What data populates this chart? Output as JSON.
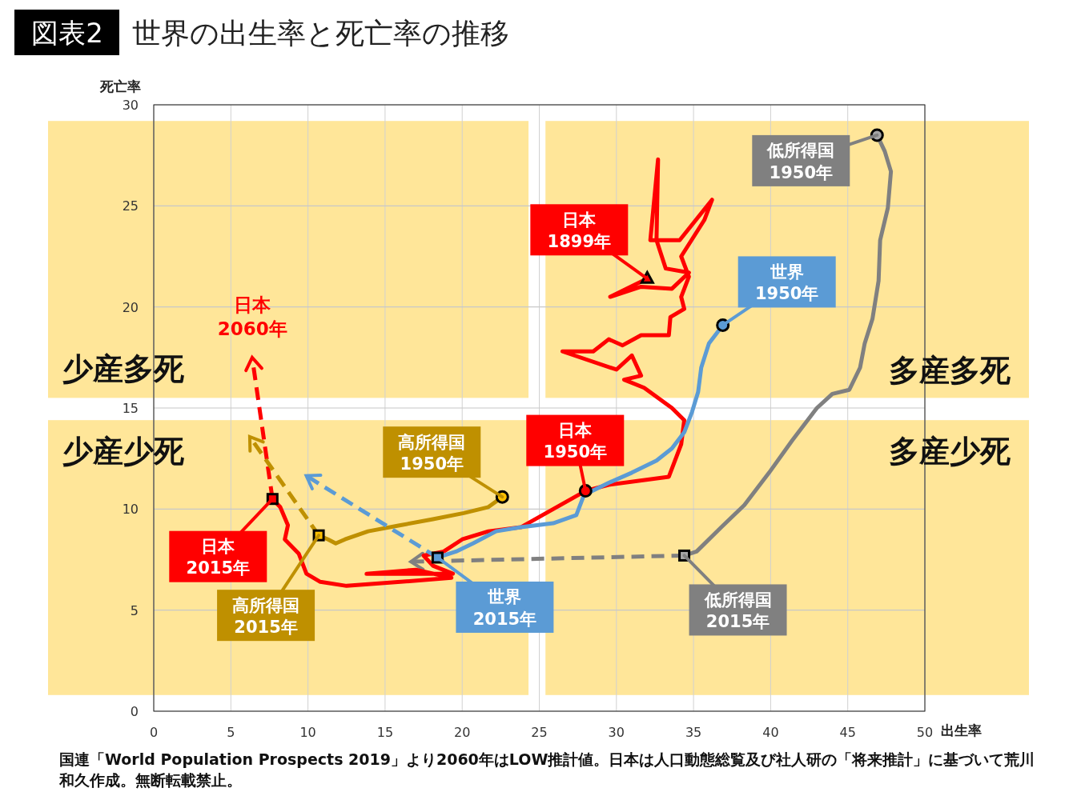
{
  "chart_data": {
    "type": "line",
    "title": "図表2",
    "subtitle": "世界の出生率と死亡率の推移",
    "xlabel": "出生率",
    "ylabel": "死亡率",
    "xlim": [
      0,
      50
    ],
    "ylim": [
      0,
      30
    ],
    "xticks": [
      0,
      5,
      10,
      15,
      20,
      25,
      30,
      35,
      40,
      45,
      50
    ],
    "yticks": [
      0,
      5,
      10,
      15,
      20,
      25,
      30
    ],
    "grid": true,
    "bands": [
      {
        "axis": "y",
        "from": 15.5,
        "to": 29.2,
        "color": "#ffe699"
      },
      {
        "axis": "y",
        "from": 0.8,
        "to": 14.4,
        "color": "#ffe699"
      },
      {
        "axis": "x",
        "from": 24.3,
        "to": 25.4,
        "color": "#ffffff"
      }
    ],
    "series": [
      {
        "type": "line",
        "color": "#808080",
        "line_style": "solid",
        "x": [
          46.9,
          47.4,
          47.8,
          47.6,
          47.1,
          47.0,
          46.6,
          46.1,
          45.8,
          45.1,
          44.0,
          43.0,
          41.4,
          39.9,
          38.3,
          36.8,
          35.2,
          34.4
        ],
        "values": [
          28.5,
          27.7,
          26.7,
          24.9,
          23.3,
          21.3,
          19.4,
          18.2,
          17.0,
          15.9,
          15.7,
          15.0,
          13.4,
          11.8,
          10.2,
          9.1,
          7.9,
          7.7
        ]
      },
      {
        "type": "line",
        "color": "#808080",
        "line_style": "dashed",
        "x": [
          34.4,
          16.8
        ],
        "values": [
          7.7,
          7.4
        ]
      },
      {
        "type": "line",
        "color": "#ff0000",
        "line_style": "solid",
        "x": [
          32.0,
          29.6,
          31.6,
          33.6,
          34.7,
          33.2,
          32.6,
          32.7,
          32.2,
          34.1,
          36.2,
          35.7,
          34.2,
          34.7,
          34.2,
          34.4,
          33.5,
          33.4,
          31.6,
          30.4,
          29.5,
          28.5,
          26.5,
          30.0,
          31.0,
          31.6,
          30.5,
          31.8,
          33.6,
          34.4,
          34.2,
          33.4,
          29.5,
          28.0,
          25.9,
          23.8,
          21.7,
          20.0,
          18.8,
          17.5,
          18.1,
          19.4,
          13.8,
          17.0,
          19.3,
          16.0,
          12.5,
          10.8,
          9.9,
          9.4,
          8.5,
          8.7,
          8.2,
          7.7
        ],
        "values": [
          21.4,
          20.5,
          21.0,
          20.9,
          21.7,
          21.9,
          23.3,
          27.3,
          23.3,
          23.3,
          25.3,
          24.3,
          22.5,
          21.5,
          20.5,
          19.9,
          19.5,
          18.6,
          18.6,
          18.1,
          18.4,
          17.8,
          17.8,
          16.9,
          17.6,
          16.6,
          16.4,
          16.0,
          15.0,
          14.4,
          13.2,
          11.6,
          11.2,
          10.9,
          10.0,
          9.1,
          8.9,
          8.5,
          7.9,
          7.7,
          7.2,
          6.8,
          6.8,
          7.0,
          6.6,
          6.4,
          6.2,
          6.4,
          6.8,
          7.8,
          8.5,
          9.2,
          10.1,
          10.5
        ]
      },
      {
        "type": "line",
        "color": "#ff0000",
        "line_style": "dashed",
        "x": [
          7.7,
          6.4
        ],
        "values": [
          10.5,
          17.4
        ]
      },
      {
        "type": "line",
        "color": "#bf9000",
        "line_style": "solid",
        "x": [
          22.6,
          21.7,
          20.1,
          18.1,
          16.0,
          13.9,
          12.4,
          11.8,
          11.3,
          10.7
        ],
        "values": [
          10.6,
          10.1,
          9.8,
          9.5,
          9.2,
          8.9,
          8.5,
          8.3,
          8.5,
          8.7
        ]
      },
      {
        "type": "line",
        "color": "#bf9000",
        "line_style": "dashed",
        "x": [
          10.7,
          6.3
        ],
        "values": [
          8.7,
          13.5
        ]
      },
      {
        "type": "line",
        "color": "#5b9bd5",
        "line_style": "solid",
        "x": [
          36.9,
          36.0,
          35.5,
          35.3,
          34.9,
          34.4,
          33.6,
          32.6,
          31.0,
          29.5,
          27.9,
          27.4,
          25.9,
          23.8,
          22.2,
          20.7,
          19.6,
          18.4
        ],
        "values": [
          19.1,
          18.2,
          17.0,
          15.8,
          14.8,
          13.8,
          13.0,
          12.4,
          11.8,
          11.3,
          10.7,
          9.7,
          9.3,
          9.1,
          8.9,
          8.3,
          7.9,
          7.6
        ]
      },
      {
        "type": "line",
        "color": "#5b9bd5",
        "line_style": "dashed",
        "x": [
          18.4,
          10.0
        ],
        "values": [
          7.6,
          11.6
        ]
      },
      {
        "type": "scatter",
        "marker": "circle",
        "x": [
          28.0,
          36.9,
          46.9,
          22.6
        ],
        "values": [
          10.9,
          19.1,
          28.5,
          10.6
        ],
        "colors": [
          "#ff0000",
          "#5b9bd5",
          "#a6a6a6",
          "#ffc000"
        ]
      },
      {
        "type": "scatter",
        "marker": "square",
        "x": [
          7.7,
          18.4,
          34.4,
          10.7
        ],
        "values": [
          10.5,
          7.6,
          7.7,
          8.7
        ],
        "colors": [
          "#ff0000",
          "#5b9bd5",
          "#a6a6a6",
          "#ffc000"
        ]
      },
      {
        "type": "scatter",
        "marker": "triangle",
        "x": [
          32.0
        ],
        "values": [
          21.4
        ],
        "colors": [
          "#ff0000"
        ]
      }
    ],
    "annotations": [
      "少産多死",
      "多産多死",
      "少産少死",
      "多産少死",
      "国連「World Population Prospects 2019」より2060年はLOW推計値。日本は人口動態総覧及び社人研の「将来推計」に基づいて荒川和久作成。無断転載禁止。",
      {
        "text": "日本\n1899年",
        "x": 32.0,
        "y": 21.4
      },
      {
        "text": "世界\n1950年",
        "x": 36.9,
        "y": 19.1
      },
      {
        "text": "低所得国\n1950年",
        "x": 46.9,
        "y": 28.5
      },
      {
        "text": "日本\n1950年",
        "x": 28.0,
        "y": 10.9
      },
      {
        "text": "高所得国\n1950年",
        "x": 22.6,
        "y": 10.6
      },
      {
        "text": "日本\n2015年",
        "x": 7.7,
        "y": 10.5
      },
      {
        "text": "高所得国\n2015年",
        "x": 10.7,
        "y": 8.7
      },
      {
        "text": "世界\n2015年",
        "x": 18.4,
        "y": 7.6
      },
      {
        "text": "低所得国\n2015年",
        "x": 34.4,
        "y": 7.7
      },
      {
        "text": "日本\n2060年",
        "x": 6.4,
        "y": 17.4
      }
    ]
  }
}
